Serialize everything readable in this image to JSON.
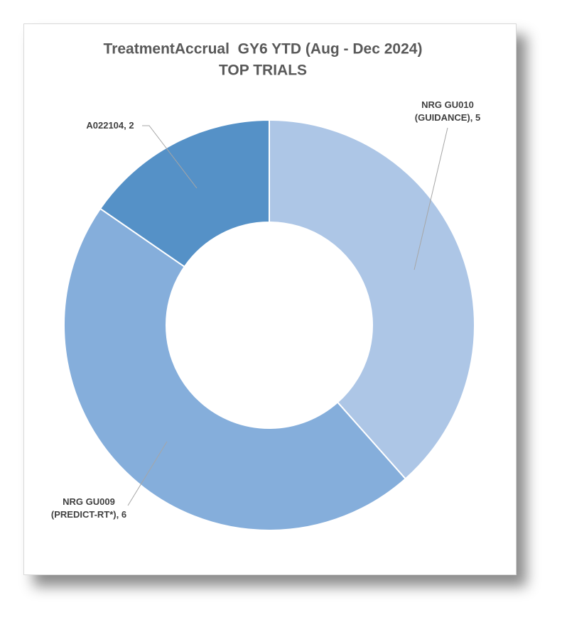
{
  "chart_data": {
    "type": "donut",
    "title": "TreatmentAccrual  GY6 YTD (Aug - Dec 2024)",
    "subtitle": "TOP TRIALS",
    "values": [
      5,
      6,
      2
    ],
    "value_labels": [
      "NRG GU010 (GUIDANCE), 5",
      "NRG GU009 (PREDICT-RT*), 6",
      "A022104, 2"
    ],
    "colors": [
      "#adc6e6",
      "#85aedb",
      "#5591c7"
    ]
  }
}
